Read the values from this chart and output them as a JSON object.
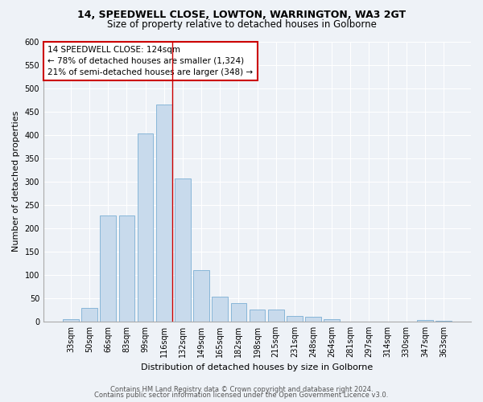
{
  "title1": "14, SPEEDWELL CLOSE, LOWTON, WARRINGTON, WA3 2GT",
  "title2": "Size of property relative to detached houses in Golborne",
  "xlabel": "Distribution of detached houses by size in Golborne",
  "ylabel": "Number of detached properties",
  "categories": [
    "33sqm",
    "50sqm",
    "66sqm",
    "83sqm",
    "99sqm",
    "116sqm",
    "132sqm",
    "149sqm",
    "165sqm",
    "182sqm",
    "198sqm",
    "215sqm",
    "231sqm",
    "248sqm",
    "264sqm",
    "281sqm",
    "297sqm",
    "314sqm",
    "330sqm",
    "347sqm",
    "363sqm"
  ],
  "values": [
    5,
    30,
    228,
    228,
    402,
    465,
    307,
    110,
    53,
    40,
    25,
    25,
    12,
    11,
    5,
    0,
    0,
    0,
    0,
    3,
    2
  ],
  "bar_color": "#c8daec",
  "bar_edge_color": "#7bafd4",
  "annotation_box_text_line1": "14 SPEEDWELL CLOSE: 124sqm",
  "annotation_box_text_line2": "← 78% of detached houses are smaller (1,324)",
  "annotation_box_text_line3": "21% of semi-detached houses are larger (348) →",
  "annotation_box_color": "white",
  "annotation_box_edge_color": "#cc0000",
  "vline_color": "#cc0000",
  "vline_x": 5.45,
  "ylim": [
    0,
    600
  ],
  "yticks": [
    0,
    50,
    100,
    150,
    200,
    250,
    300,
    350,
    400,
    450,
    500,
    550,
    600
  ],
  "footer1": "Contains HM Land Registry data © Crown copyright and database right 2024.",
  "footer2": "Contains public sector information licensed under the Open Government Licence v3.0.",
  "bg_color": "#eef2f7",
  "plot_bg_color": "#eef2f7",
  "title1_fontsize": 9,
  "title2_fontsize": 8.5,
  "xlabel_fontsize": 8,
  "ylabel_fontsize": 8,
  "tick_fontsize": 7,
  "annotation_fontsize": 7.5,
  "footer_fontsize": 6
}
